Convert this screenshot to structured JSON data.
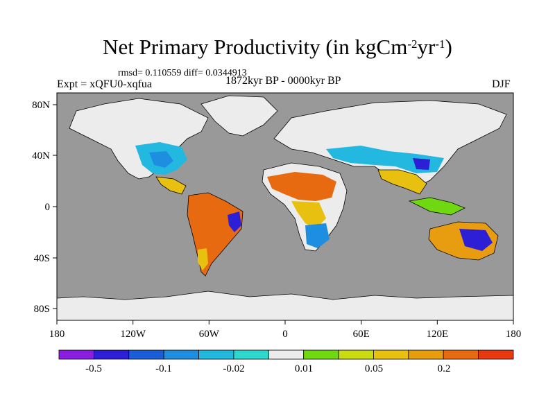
{
  "figure": {
    "title_main": "Net Primary Productivity (in kgCm",
    "title_exp1": "-2",
    "title_mid": "yr",
    "title_exp2": "-1",
    "title_end": ")",
    "stats": "rmsd= 0.110559 diff= 0.0344913",
    "experiment": "Expt = xQFU0-xqfua",
    "period": "1872kyr BP - 0000kyr BP",
    "season": "DJF"
  },
  "chart_data": {
    "type": "heatmap",
    "map": "global lon-lat anomaly map",
    "x_ticks": [
      "180",
      "120W",
      "60W",
      "0",
      "60E",
      "120E",
      "180"
    ],
    "y_ticks": [
      "80N",
      "40N",
      "0",
      "40S",
      "80S"
    ],
    "xlim": [
      -180,
      180
    ],
    "ylim": [
      -90,
      90
    ],
    "colorbar": {
      "labels": [
        "-0.5",
        "-0.1",
        "-0.02",
        "0.01",
        "0.05",
        "0.2"
      ],
      "colors": [
        "#8a1ee0",
        "#2d1fd6",
        "#1a5fd8",
        "#1e8fe0",
        "#22b8e0",
        "#2ed8cc",
        "#ececec",
        "#6fd810",
        "#c8dc12",
        "#e8c010",
        "#e89c10",
        "#e86a10",
        "#e83a10"
      ]
    },
    "colors": {
      "ocean": "#999999",
      "land_neutral": "#ececec"
    }
  }
}
